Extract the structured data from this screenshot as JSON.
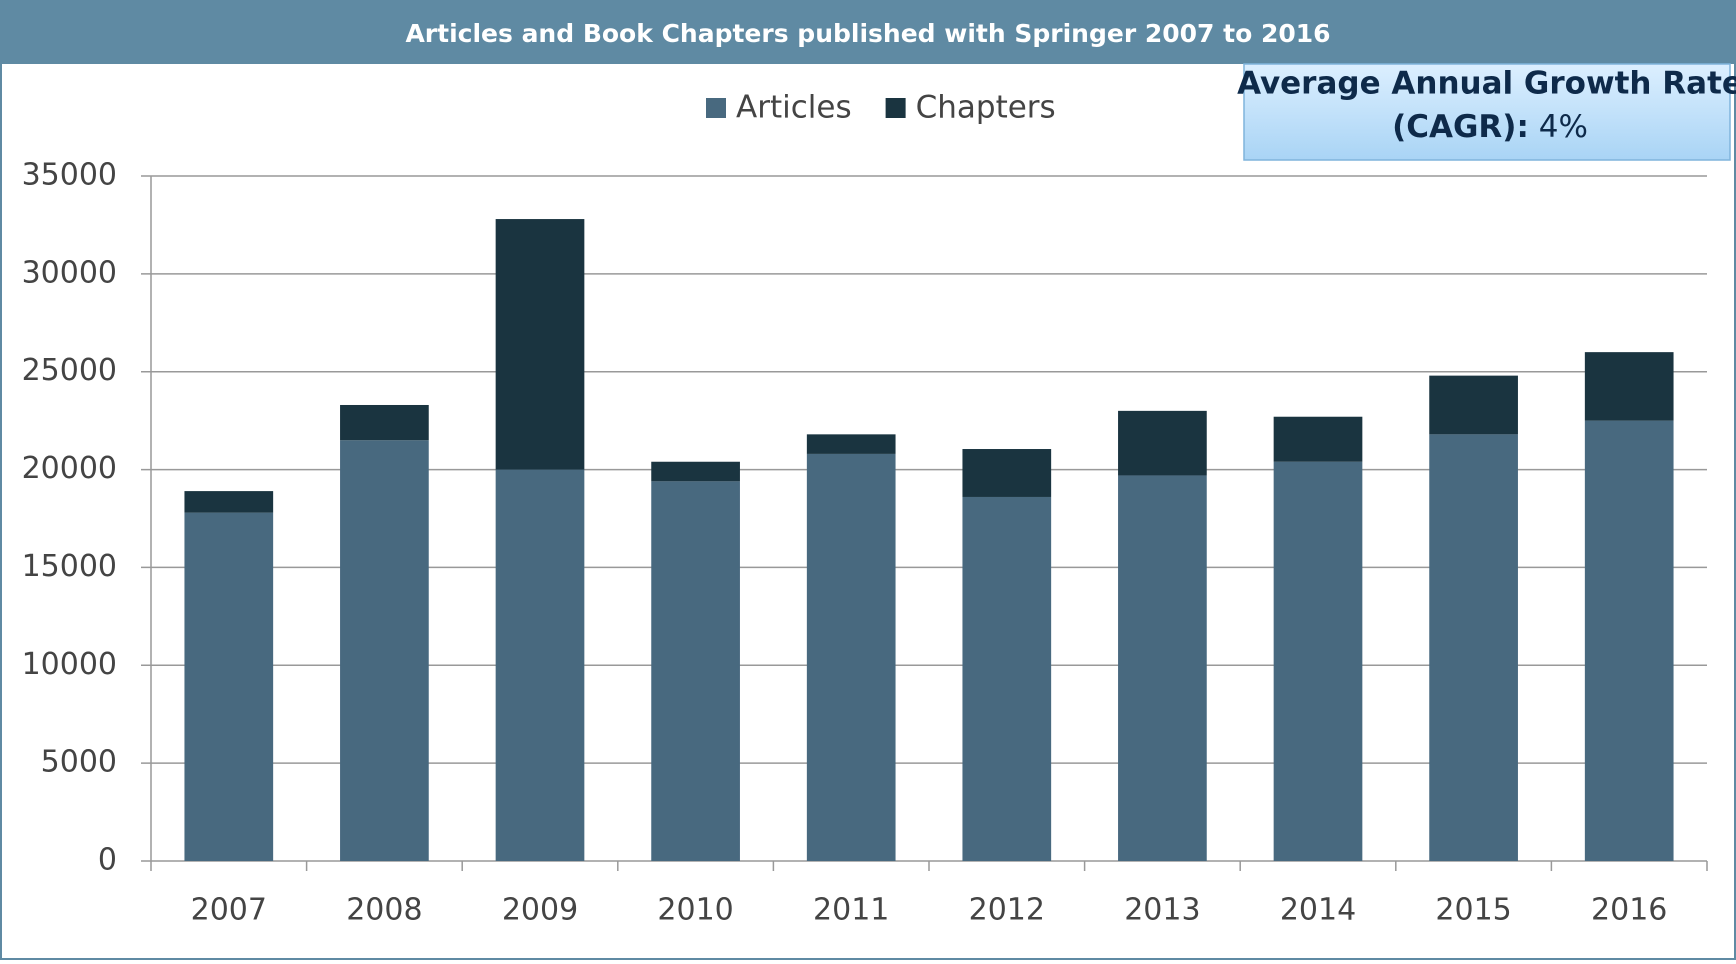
{
  "chart_data": {
    "type": "bar",
    "stacked": true,
    "title": "Articles and Book Chapters published with Springer 2007 to 2016",
    "categories": [
      "2007",
      "2008",
      "2009",
      "2010",
      "2011",
      "2012",
      "2013",
      "2014",
      "2015",
      "2016"
    ],
    "series": [
      {
        "name": "Articles",
        "color": "#48697f",
        "values": [
          17800,
          21500,
          20000,
          19400,
          20800,
          18600,
          19700,
          20400,
          21800,
          22500
        ]
      },
      {
        "name": "Chapters",
        "color": "#1a3440",
        "values": [
          1100,
          1800,
          12800,
          1000,
          1000,
          2450,
          3300,
          2300,
          3000,
          3500
        ]
      }
    ],
    "ylim": [
      0,
      35000
    ],
    "yticks": [
      0,
      5000,
      10000,
      15000,
      20000,
      25000,
      30000,
      35000
    ],
    "grid": true,
    "legend": "top",
    "annotation": {
      "label": "Average Annual Growth Rate",
      "label2": "(CAGR):",
      "value": "4%"
    }
  }
}
